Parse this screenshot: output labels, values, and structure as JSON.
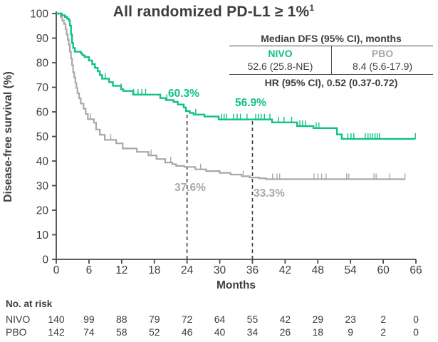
{
  "title": {
    "text": "All randomized PD-L1 ≥ 1%",
    "footnote_marker": "1"
  },
  "inset_table": {
    "header": "Median DFS (95% CI), months",
    "columns": [
      {
        "name": "NIVO",
        "value": "52.6 (25.8-NE)"
      },
      {
        "name": "PBO",
        "value": "8.4 (5.6-17.9)"
      }
    ],
    "hr_row": "HR (95% CI), 0.52 (0.37-0.72)"
  },
  "annotations": {
    "nivo_24": "60.3%",
    "nivo_36": "56.9%",
    "pbo_24": "37.6%",
    "pbo_36": "33.3%"
  },
  "at_risk": {
    "title": "No. at risk",
    "months": [
      0,
      6,
      12,
      18,
      24,
      30,
      36,
      42,
      48,
      54,
      60,
      66
    ],
    "groups": [
      {
        "name": "NIVO",
        "values": [
          140,
          99,
          88,
          79,
          72,
          64,
          55,
          42,
          29,
          23,
          2,
          0
        ]
      },
      {
        "name": "PBO",
        "values": [
          142,
          74,
          58,
          52,
          46,
          40,
          34,
          26,
          18,
          9,
          2,
          0
        ]
      }
    ]
  },
  "colors": {
    "nivo": "#0ec08c",
    "pbo": "#a8a8a8",
    "text": "#3d3d3d",
    "axis": "#4a4a4a"
  },
  "chart_data": {
    "type": "line",
    "subtype": "kaplan-meier-step",
    "title": "All randomized PD-L1 ≥ 1%",
    "xlabel": "Months",
    "ylabel": "Disease-free survival (%)",
    "xlim": [
      0,
      66
    ],
    "ylim": [
      0,
      100
    ],
    "xticks": [
      0,
      6,
      12,
      18,
      24,
      30,
      36,
      42,
      48,
      54,
      60,
      66
    ],
    "yticks": [
      0,
      10,
      20,
      30,
      40,
      50,
      60,
      70,
      80,
      90,
      100
    ],
    "grid": false,
    "dashed_reference_lines": [
      {
        "month": 24,
        "to_pct": 60.3
      },
      {
        "month": 36,
        "to_pct": 56.9
      }
    ],
    "hazard_ratio_label": "HR (95% CI), 0.52 (0.37-0.72)",
    "series": [
      {
        "name": "NIVO",
        "color": "#0ec08c",
        "median_dfs_months": "52.6 (25.8-NE)",
        "landmark_pct": {
          "24": 60.3,
          "36": 56.9
        },
        "steps": [
          [
            0,
            100
          ],
          [
            1,
            99.3
          ],
          [
            1.6,
            98.6
          ],
          [
            2,
            97.9
          ],
          [
            2.3,
            97.2
          ],
          [
            2.5,
            95.1
          ],
          [
            2.7,
            91.5
          ],
          [
            2.9,
            88.0
          ],
          [
            3.1,
            86.0
          ],
          [
            3.4,
            84.5
          ],
          [
            4.5,
            83.8
          ],
          [
            4.8,
            83.0
          ],
          [
            5.2,
            82.3
          ],
          [
            6,
            80.9
          ],
          [
            6.6,
            79.4
          ],
          [
            7.1,
            77.9
          ],
          [
            7.6,
            76.5
          ],
          [
            8,
            75.0
          ],
          [
            8.4,
            73.5
          ],
          [
            9.7,
            72.1
          ],
          [
            10.4,
            70.6
          ],
          [
            11.9,
            69.2
          ],
          [
            12.3,
            68.5
          ],
          [
            14.1,
            67.0
          ],
          [
            19.1,
            65.6
          ],
          [
            20.1,
            64.8
          ],
          [
            21.5,
            64.1
          ],
          [
            22.3,
            63.0
          ],
          [
            23.4,
            61.8
          ],
          [
            23.8,
            60.3
          ],
          [
            24.5,
            59.6
          ],
          [
            25.2,
            58.9
          ],
          [
            27.2,
            58.1
          ],
          [
            29.8,
            56.9
          ],
          [
            39.6,
            55.7
          ],
          [
            44.2,
            54.2
          ],
          [
            47.2,
            53.4
          ],
          [
            51.5,
            50.8
          ],
          [
            52.4,
            49.0
          ],
          [
            65.9,
            49.0
          ]
        ],
        "censor_months": [
          9,
          11.9,
          14.2,
          15,
          15.7,
          16.4,
          20.3,
          25.6,
          30.3,
          30.8,
          31.2,
          32.5,
          33.2,
          33.8,
          35,
          36.6,
          37.1,
          37.6,
          38.2,
          39.2,
          40.8,
          41.8,
          43.2,
          44.7,
          45.2,
          45.7,
          47.7,
          48.2,
          53.5,
          54.1,
          54.6,
          56.7,
          57.2,
          57.6,
          58,
          58.5,
          58.9,
          59.3,
          65.9
        ]
      },
      {
        "name": "PBO",
        "color": "#a8a8a8",
        "median_dfs_months": "8.4 (5.6-17.9)",
        "landmark_pct": {
          "24": 37.6,
          "36": 33.3
        },
        "steps": [
          [
            0,
            100
          ],
          [
            0.8,
            98.6
          ],
          [
            1.1,
            97.2
          ],
          [
            1.4,
            95.8
          ],
          [
            1.7,
            93.7
          ],
          [
            1.9,
            91.5
          ],
          [
            2.1,
            89.4
          ],
          [
            2.3,
            87.3
          ],
          [
            2.5,
            84.5
          ],
          [
            2.7,
            81.7
          ],
          [
            2.9,
            78.9
          ],
          [
            3.1,
            76.1
          ],
          [
            3.3,
            73.9
          ],
          [
            3.5,
            71.8
          ],
          [
            3.7,
            69.7
          ],
          [
            3.9,
            67.6
          ],
          [
            4.2,
            65.5
          ],
          [
            4.5,
            63.4
          ],
          [
            5,
            61.3
          ],
          [
            5.4,
            59.2
          ],
          [
            5.8,
            57.0
          ],
          [
            6.9,
            55.6
          ],
          [
            7.3,
            52.8
          ],
          [
            8,
            50.7
          ],
          [
            8.9,
            48.6
          ],
          [
            11,
            47.2
          ],
          [
            12.2,
            45.1
          ],
          [
            14.8,
            43.7
          ],
          [
            16.9,
            42.3
          ],
          [
            18.4,
            40.8
          ],
          [
            20,
            39.4
          ],
          [
            21.3,
            38.7
          ],
          [
            22,
            38.0
          ],
          [
            23.5,
            37.6
          ],
          [
            25.5,
            36.6
          ],
          [
            27.5,
            35.9
          ],
          [
            30,
            35.2
          ],
          [
            32,
            34.5
          ],
          [
            34,
            33.8
          ],
          [
            35.5,
            33.3
          ],
          [
            37.2,
            33.0
          ],
          [
            38.5,
            32.6
          ],
          [
            64,
            32.6
          ]
        ],
        "censor_months": [
          6.3,
          10,
          17.4,
          21,
          26.5,
          34.3,
          39.7,
          40.5,
          41,
          47.3,
          48,
          48.7,
          49.5,
          53.3,
          53.7,
          58.3,
          58.7,
          61.2,
          64
        ]
      }
    ]
  }
}
